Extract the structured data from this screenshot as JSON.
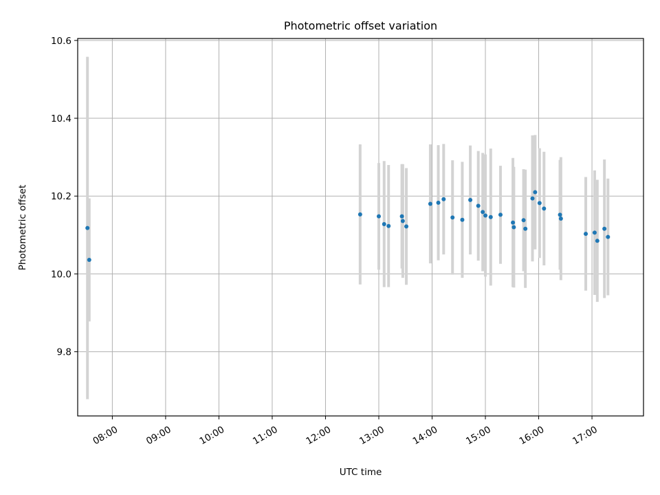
{
  "chart_data": {
    "type": "scatter",
    "title": "Photometric offset variation",
    "xlabel": "UTC time",
    "ylabel": "Photometric offset",
    "x_unit": "time-of-day",
    "xlim": [
      "07:21",
      "17:58"
    ],
    "ylim": [
      9.635,
      10.605
    ],
    "x_ticks": [
      "08:00",
      "09:00",
      "10:00",
      "11:00",
      "12:00",
      "13:00",
      "14:00",
      "15:00",
      "16:00",
      "17:00"
    ],
    "y_ticks": [
      "9.8",
      "10.0",
      "10.2",
      "10.4",
      "10.6"
    ],
    "grid": true,
    "colors": {
      "marker": "#1f77b4",
      "errorbar": "#d3d3d3",
      "grid": "#b0b0b0"
    },
    "points": [
      {
        "x": "07:32",
        "y": 10.118,
        "yerr": 0.44
      },
      {
        "x": "07:34",
        "y": 10.036,
        "yerr": 0.158
      },
      {
        "x": "12:39",
        "y": 10.153,
        "yerr": 0.18
      },
      {
        "x": "13:00",
        "y": 10.148,
        "yerr": 0.137
      },
      {
        "x": "13:06",
        "y": 10.128,
        "yerr": 0.162
      },
      {
        "x": "13:11",
        "y": 10.123,
        "yerr": 0.157
      },
      {
        "x": "13:26",
        "y": 10.148,
        "yerr": 0.134
      },
      {
        "x": "13:27",
        "y": 10.136,
        "yerr": 0.146
      },
      {
        "x": "13:31",
        "y": 10.122,
        "yerr": 0.15
      },
      {
        "x": "13:58",
        "y": 10.18,
        "yerr": 0.153
      },
      {
        "x": "14:07",
        "y": 10.183,
        "yerr": 0.148
      },
      {
        "x": "14:13",
        "y": 10.192,
        "yerr": 0.142
      },
      {
        "x": "14:23",
        "y": 10.145,
        "yerr": 0.147
      },
      {
        "x": "14:34",
        "y": 10.139,
        "yerr": 0.149
      },
      {
        "x": "14:43",
        "y": 10.19,
        "yerr": 0.14
      },
      {
        "x": "14:52",
        "y": 10.175,
        "yerr": 0.141
      },
      {
        "x": "14:57",
        "y": 10.159,
        "yerr": 0.152
      },
      {
        "x": "15:00",
        "y": 10.15,
        "yerr": 0.157
      },
      {
        "x": "15:06",
        "y": 10.146,
        "yerr": 0.176
      },
      {
        "x": "15:17",
        "y": 10.152,
        "yerr": 0.126
      },
      {
        "x": "15:31",
        "y": 10.132,
        "yerr": 0.166
      },
      {
        "x": "15:32",
        "y": 10.12,
        "yerr": 0.155
      },
      {
        "x": "15:43",
        "y": 10.138,
        "yerr": 0.131
      },
      {
        "x": "15:45",
        "y": 10.116,
        "yerr": 0.152
      },
      {
        "x": "15:53",
        "y": 10.194,
        "yerr": 0.162
      },
      {
        "x": "15:56",
        "y": 10.21,
        "yerr": 0.147
      },
      {
        "x": "16:01",
        "y": 10.182,
        "yerr": 0.141
      },
      {
        "x": "16:06",
        "y": 10.168,
        "yerr": 0.146
      },
      {
        "x": "16:24",
        "y": 10.152,
        "yerr": 0.141
      },
      {
        "x": "16:25",
        "y": 10.142,
        "yerr": 0.158
      },
      {
        "x": "16:53",
        "y": 10.103,
        "yerr": 0.146
      },
      {
        "x": "17:03",
        "y": 10.106,
        "yerr": 0.16
      },
      {
        "x": "17:06",
        "y": 10.085,
        "yerr": 0.157
      },
      {
        "x": "17:14",
        "y": 10.116,
        "yerr": 0.178
      },
      {
        "x": "17:18",
        "y": 10.095,
        "yerr": 0.15
      }
    ]
  }
}
